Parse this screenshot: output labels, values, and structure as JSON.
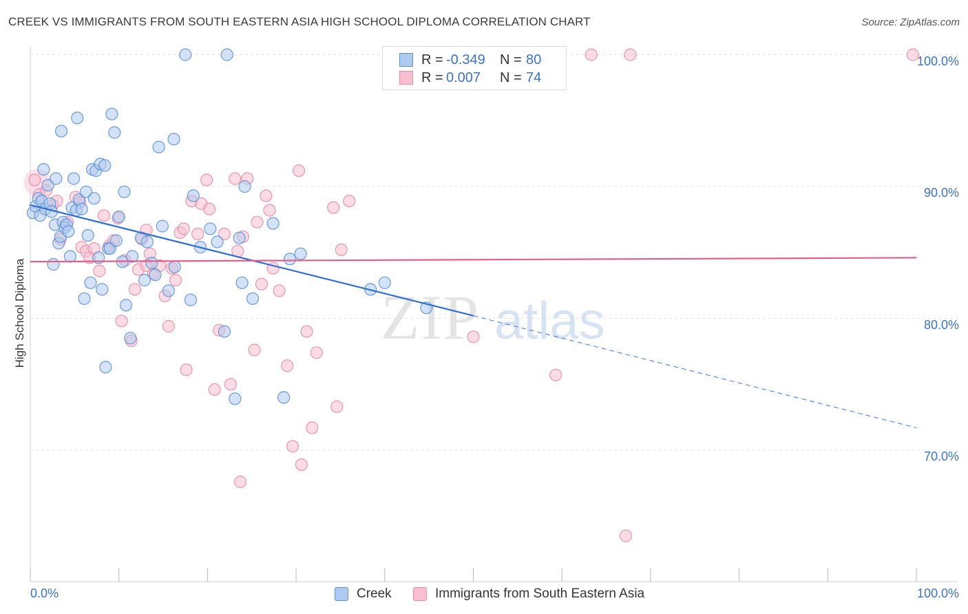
{
  "title": "CREEK VS IMMIGRANTS FROM SOUTH EASTERN ASIA HIGH SCHOOL DIPLOMA CORRELATION CHART",
  "source": "Source: ZipAtlas.com",
  "watermark": {
    "zip": "ZIP",
    "atlas": "atlas"
  },
  "legend": {
    "rows": [
      {
        "r_label": "R =",
        "r_value": "-0.349",
        "n_label": "N =",
        "n_value": "80"
      },
      {
        "r_label": "R =",
        "r_value": "0.007",
        "n_label": "N =",
        "n_value": "74"
      }
    ]
  },
  "bottom_legend": {
    "creek": "Creek",
    "immigrants": "Immigrants from South Eastern Asia"
  },
  "colors": {
    "creek_fill": "#aecbef",
    "creek_stroke": "#5a90d8",
    "creek_line": "#2f6fd1",
    "imm_fill": "#f7bfd0",
    "imm_stroke": "#e58aa8",
    "imm_line": "#e0608a",
    "tick_text": "#3a73c8",
    "grid": "#e2e2e2"
  },
  "chart_data": {
    "type": "scatter",
    "title": "CREEK VS IMMIGRANTS FROM SOUTH EASTERN ASIA HIGH SCHOOL DIPLOMA CORRELATION CHART",
    "xlabel": "",
    "ylabel": "High School Diploma",
    "xlim": [
      0,
      100
    ],
    "ylim": [
      60,
      103
    ],
    "x_tick_labels": [
      {
        "value": 0,
        "label": "0.0%"
      },
      {
        "value": 100,
        "label": "100.0%"
      }
    ],
    "y_tick_labels": [
      {
        "value": 70,
        "label": "70.0%"
      },
      {
        "value": 80,
        "label": "80.0%"
      },
      {
        "value": 90,
        "label": "90.0%"
      },
      {
        "value": 100,
        "label": "100.0%"
      }
    ],
    "grid": true,
    "series": [
      {
        "name": "Creek",
        "stats": {
          "R": -0.349,
          "N": 80
        },
        "trend": {
          "x0": 0,
          "y0": 88.6,
          "x1": 50,
          "y1": 80.2,
          "dash_to_x": 100,
          "dash_to_y": 71.7
        },
        "points": [
          [
            0.3,
            88.0
          ],
          [
            0.6,
            88.5
          ],
          [
            0.9,
            89.1
          ],
          [
            1.1,
            87.8
          ],
          [
            1.3,
            88.9
          ],
          [
            1.5,
            91.3
          ],
          [
            1.7,
            88.3
          ],
          [
            2.0,
            90.1
          ],
          [
            2.2,
            88.7
          ],
          [
            2.4,
            88.1
          ],
          [
            2.6,
            84.1
          ],
          [
            2.8,
            87.1
          ],
          [
            2.9,
            90.6
          ],
          [
            3.2,
            85.7
          ],
          [
            3.4,
            86.2
          ],
          [
            3.5,
            94.2
          ],
          [
            3.7,
            87.3
          ],
          [
            3.9,
            86.9
          ],
          [
            4.1,
            87.1
          ],
          [
            4.3,
            86.6
          ],
          [
            4.5,
            84.7
          ],
          [
            4.7,
            88.4
          ],
          [
            4.9,
            90.6
          ],
          [
            5.2,
            88.2
          ],
          [
            5.3,
            95.2
          ],
          [
            5.5,
            89.0
          ],
          [
            5.8,
            88.3
          ],
          [
            6.1,
            81.5
          ],
          [
            6.3,
            89.6
          ],
          [
            6.5,
            86.3
          ],
          [
            6.8,
            82.7
          ],
          [
            7.0,
            91.3
          ],
          [
            7.2,
            89.1
          ],
          [
            7.4,
            91.2
          ],
          [
            7.7,
            84.6
          ],
          [
            7.9,
            91.7
          ],
          [
            8.1,
            82.2
          ],
          [
            8.4,
            91.6
          ],
          [
            8.5,
            76.3
          ],
          [
            8.8,
            85.3
          ],
          [
            9.0,
            85.3
          ],
          [
            9.2,
            95.5
          ],
          [
            9.5,
            94.1
          ],
          [
            9.7,
            85.9
          ],
          [
            10.0,
            87.7
          ],
          [
            10.4,
            84.3
          ],
          [
            10.6,
            89.6
          ],
          [
            10.8,
            81.0
          ],
          [
            11.3,
            78.5
          ],
          [
            11.5,
            84.7
          ],
          [
            12.5,
            86.1
          ],
          [
            12.9,
            82.9
          ],
          [
            13.2,
            85.8
          ],
          [
            13.7,
            84.2
          ],
          [
            14.1,
            83.3
          ],
          [
            14.5,
            93.0
          ],
          [
            14.9,
            87.0
          ],
          [
            15.6,
            82.1
          ],
          [
            16.2,
            93.6
          ],
          [
            16.3,
            83.9
          ],
          [
            17.5,
            100.0
          ],
          [
            18.1,
            81.4
          ],
          [
            18.4,
            89.3
          ],
          [
            19.2,
            85.4
          ],
          [
            20.3,
            86.8
          ],
          [
            21.1,
            85.8
          ],
          [
            21.9,
            79.0
          ],
          [
            22.2,
            100.0
          ],
          [
            23.1,
            73.9
          ],
          [
            23.6,
            86.1
          ],
          [
            23.9,
            82.7
          ],
          [
            24.2,
            90.0
          ],
          [
            25.1,
            81.5
          ],
          [
            27.4,
            87.2
          ],
          [
            28.6,
            74.0
          ],
          [
            29.3,
            84.5
          ],
          [
            30.5,
            84.9
          ],
          [
            38.4,
            82.2
          ],
          [
            40.0,
            82.7
          ],
          [
            44.7,
            80.8
          ]
        ]
      },
      {
        "name": "Immigrants from South Eastern Asia",
        "stats": {
          "R": 0.007,
          "N": 74
        },
        "trend": {
          "x0": 0,
          "y0": 84.3,
          "x1": 100,
          "y1": 84.6
        },
        "points": [
          [
            0.5,
            90.5
          ],
          [
            1.0,
            89.4
          ],
          [
            1.8,
            89.7
          ],
          [
            2.5,
            88.6
          ],
          [
            3.0,
            88.9
          ],
          [
            3.4,
            86.0
          ],
          [
            4.2,
            87.3
          ],
          [
            5.1,
            89.2
          ],
          [
            5.6,
            88.8
          ],
          [
            5.8,
            85.4
          ],
          [
            6.3,
            85.1
          ],
          [
            6.7,
            84.6
          ],
          [
            7.2,
            85.3
          ],
          [
            7.8,
            83.6
          ],
          [
            8.3,
            87.8
          ],
          [
            8.9,
            85.5
          ],
          [
            9.4,
            85.9
          ],
          [
            9.9,
            87.6
          ],
          [
            10.3,
            79.8
          ],
          [
            10.7,
            84.4
          ],
          [
            11.4,
            78.3
          ],
          [
            11.8,
            82.2
          ],
          [
            12.2,
            83.7
          ],
          [
            12.6,
            86.0
          ],
          [
            13.1,
            86.7
          ],
          [
            13.5,
            84.9
          ],
          [
            13.9,
            83.4
          ],
          [
            14.6,
            84.0
          ],
          [
            15.2,
            81.7
          ],
          [
            15.6,
            79.4
          ],
          [
            16.0,
            83.8
          ],
          [
            16.4,
            82.9
          ],
          [
            16.9,
            86.5
          ],
          [
            17.3,
            86.8
          ],
          [
            17.6,
            76.1
          ],
          [
            18.2,
            88.9
          ],
          [
            18.9,
            86.4
          ],
          [
            19.3,
            88.7
          ],
          [
            19.9,
            90.5
          ],
          [
            20.2,
            88.3
          ],
          [
            20.8,
            74.6
          ],
          [
            21.3,
            79.1
          ],
          [
            21.9,
            86.4
          ],
          [
            22.6,
            75.0
          ],
          [
            23.1,
            90.6
          ],
          [
            23.4,
            85.1
          ],
          [
            24.0,
            86.2
          ],
          [
            24.5,
            90.6
          ],
          [
            25.3,
            77.6
          ],
          [
            25.6,
            87.3
          ],
          [
            26.1,
            82.6
          ],
          [
            26.6,
            89.3
          ],
          [
            27.0,
            88.2
          ],
          [
            27.4,
            83.8
          ],
          [
            28.1,
            82.1
          ],
          [
            29.0,
            76.4
          ],
          [
            29.6,
            70.3
          ],
          [
            30.3,
            91.2
          ],
          [
            30.6,
            68.9
          ],
          [
            31.2,
            79.0
          ],
          [
            31.8,
            71.7
          ],
          [
            32.3,
            77.4
          ],
          [
            34.2,
            88.4
          ],
          [
            34.6,
            73.3
          ],
          [
            35.1,
            85.2
          ],
          [
            36.0,
            88.9
          ],
          [
            23.7,
            67.6
          ],
          [
            50.0,
            78.6
          ],
          [
            59.3,
            75.7
          ],
          [
            63.3,
            100.0
          ],
          [
            67.2,
            63.5
          ],
          [
            67.7,
            100.0
          ],
          [
            99.6,
            100.0
          ],
          [
            13.1,
            84.0
          ]
        ]
      }
    ]
  }
}
